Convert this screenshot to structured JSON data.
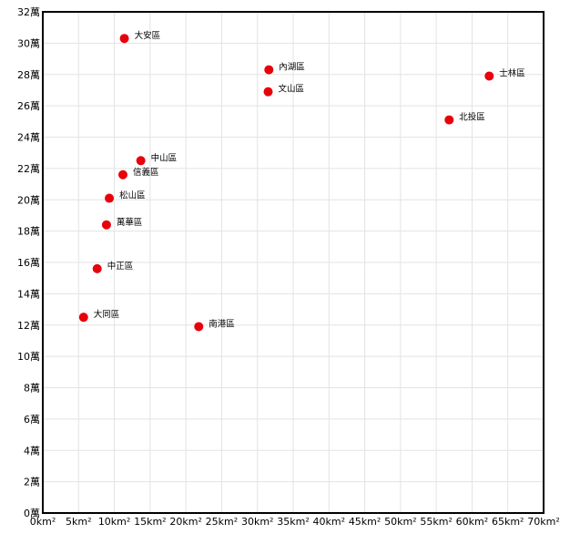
{
  "chart_data": {
    "type": "scatter",
    "title": "",
    "xlabel": "",
    "ylabel": "",
    "xlim": [
      0,
      70
    ],
    "ylim": [
      0,
      32
    ],
    "x_tick_labels": [
      "0km²",
      "5km²",
      "10km²",
      "15km²",
      "20km²",
      "25km²",
      "30km²",
      "35km²",
      "40km²",
      "45km²",
      "50km²",
      "55km²",
      "60km²",
      "65km²",
      "70km²"
    ],
    "y_tick_labels": [
      "0萬",
      "2萬",
      "4萬",
      "6萬",
      "8萬",
      "10萬",
      "12萬",
      "14萬",
      "16萬",
      "18萬",
      "20萬",
      "22萬",
      "24萬",
      "26萬",
      "28萬",
      "30萬",
      "32萬"
    ],
    "grid": true,
    "point_color": "#e8000b",
    "points": [
      {
        "label": "大安區",
        "x": 11.4,
        "y": 30.3
      },
      {
        "label": "內湖區",
        "x": 31.6,
        "y": 28.3
      },
      {
        "label": "文山區",
        "x": 31.5,
        "y": 26.9
      },
      {
        "label": "士林區",
        "x": 62.4,
        "y": 27.9
      },
      {
        "label": "北投區",
        "x": 56.8,
        "y": 25.1
      },
      {
        "label": "中山區",
        "x": 13.7,
        "y": 22.5
      },
      {
        "label": "信義區",
        "x": 11.2,
        "y": 21.6
      },
      {
        "label": "松山區",
        "x": 9.3,
        "y": 20.1
      },
      {
        "label": "萬華區",
        "x": 8.9,
        "y": 18.4
      },
      {
        "label": "中正區",
        "x": 7.6,
        "y": 15.6
      },
      {
        "label": "大同區",
        "x": 5.7,
        "y": 12.5
      },
      {
        "label": "南港區",
        "x": 21.8,
        "y": 11.9
      }
    ]
  }
}
